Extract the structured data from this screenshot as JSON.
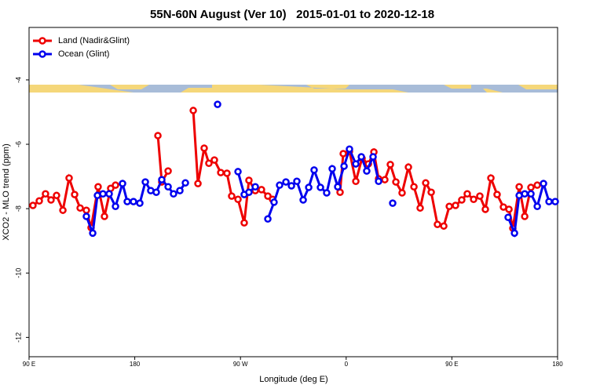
{
  "chart_data": {
    "type": "line",
    "title": "55N-60N August (Ver 10)   2015-01-01 to 2020-12-18",
    "x_label": "Longitude (deg E)",
    "y_label": "XCO2 - MLO trend (ppm)",
    "xlim": [
      90,
      540
    ],
    "ylim": [
      -12.6,
      -2.37
    ],
    "xticks": [
      {
        "value": 90,
        "label": "90 E"
      },
      {
        "value": 180,
        "label": "180"
      },
      {
        "value": 270,
        "label": "90 W"
      },
      {
        "value": 360,
        "label": "0"
      },
      {
        "value": 450,
        "label": "90 E"
      },
      {
        "value": 540,
        "label": "180"
      }
    ],
    "yticks": [
      -12,
      -10,
      -8,
      -6,
      -4
    ],
    "legend": "top-left",
    "series": [
      {
        "name": "Land (Nadir&Glint)",
        "color": "#ee0000",
        "x": [
          93.3,
          98.7,
          104.0,
          108.7,
          113.4,
          118.8,
          124.1,
          128.8,
          133.5,
          138.8,
          142.8,
          148.8,
          154.2,
          159.5,
          163.6,
          null,
          199.7,
          203.0,
          208.4,
          null,
          229.8,
          233.8,
          239.1,
          243.1,
          247.8,
          253.2,
          258.5,
          262.5,
          267.9,
          273.2,
          277.2,
          282.6,
          287.9,
          293.3,
          297.3,
          null,
          354.8,
          357.5,
          362.8,
          368.2,
          373.5,
          378.9,
          383.6,
          387.6,
          392.9,
          397.6,
          402.3,
          407.6,
          413.0,
          417.7,
          423.0,
          427.7,
          432.4,
          437.7,
          443.1,
          447.8,
          453.1,
          458.4,
          463.1,
          468.5,
          473.8,
          478.5,
          483.2,
          488.5,
          493.9,
          498.6,
          501.9,
          507.3,
          512.0,
          517.3,
          522.7
        ],
        "values": [
          -7.9,
          -7.76,
          -7.54,
          -7.73,
          -7.59,
          -8.05,
          -7.05,
          -7.56,
          -7.98,
          -8.05,
          -8.59,
          -7.32,
          -8.24,
          -7.37,
          -7.27,
          null,
          -5.73,
          -7.17,
          -6.83,
          null,
          -4.95,
          -7.22,
          -6.12,
          -6.59,
          -6.49,
          -6.88,
          -6.9,
          -7.61,
          -7.71,
          -8.44,
          -7.12,
          -7.44,
          -7.41,
          -7.61,
          -7.71,
          null,
          -7.49,
          -6.29,
          -6.22,
          -7.15,
          -6.44,
          -6.61,
          -6.24,
          -7.07,
          -7.1,
          -6.63,
          -7.17,
          -7.51,
          -6.71,
          -7.32,
          -7.98,
          -7.2,
          -7.49,
          -8.49,
          -8.54,
          -7.93,
          -7.9,
          -7.73,
          -7.54,
          -7.71,
          -7.61,
          -8.02,
          -7.05,
          -7.56,
          -7.95,
          -8.02,
          -8.61,
          -7.32,
          -8.24,
          -7.34,
          -7.27
        ]
      },
      {
        "name": "Ocean (Glint)",
        "color": "#0000ee",
        "x": [
          138.8,
          144.2,
          148.2,
          152.9,
          158.2,
          163.6,
          169.6,
          173.6,
          178.9,
          184.3,
          189.0,
          193.6,
          198.3,
          203.0,
          208.4,
          213.0,
          218.4,
          223.1,
          null,
          250.5,
          null,
          267.9,
          273.2,
          277.2,
          282.6,
          null,
          293.3,
          298.6,
          303.3,
          308.7,
          313.4,
          318.0,
          323.4,
          328.1,
          332.7,
          338.1,
          343.4,
          348.1,
          352.8,
          358.2,
          362.8,
          368.2,
          372.9,
          377.5,
          382.9,
          387.6,
          null,
          399.6,
          null,
          497.9,
          503.3,
          507.3,
          512.0,
          517.3,
          522.7,
          528.0,
          532.7,
          538.0
        ],
        "values": [
          -8.24,
          -8.76,
          -7.59,
          -7.54,
          -7.54,
          -7.93,
          -7.22,
          -7.78,
          -7.78,
          -7.83,
          -7.17,
          -7.44,
          -7.49,
          -7.1,
          -7.32,
          -7.54,
          -7.44,
          -7.2,
          null,
          -4.76,
          null,
          -6.85,
          -7.56,
          -7.49,
          -7.32,
          null,
          -8.32,
          -7.8,
          -7.27,
          -7.17,
          -7.29,
          -7.15,
          -7.73,
          -7.34,
          -6.8,
          -7.34,
          -7.51,
          -6.76,
          -7.32,
          -6.68,
          -6.15,
          -6.61,
          -6.39,
          -6.83,
          -6.39,
          -7.15,
          null,
          -7.83,
          null,
          -8.27,
          -8.76,
          -7.59,
          -7.54,
          -7.54,
          -7.93,
          -7.22,
          -7.78,
          -7.78
        ]
      }
    ]
  }
}
